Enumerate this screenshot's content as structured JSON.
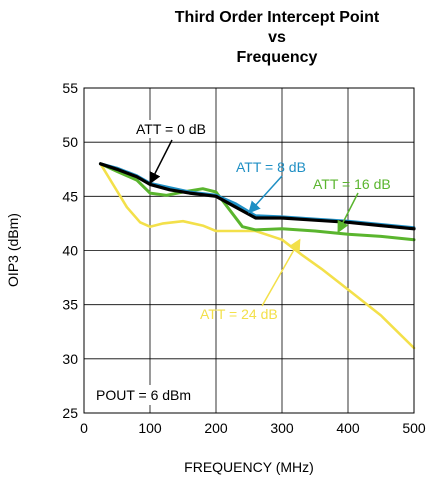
{
  "chart_data": {
    "type": "line",
    "title_lines": [
      "Third Order Intercept Point",
      "vs",
      "Frequency"
    ],
    "xlabel": "FREQUENCY (MHz)",
    "ylabel": "OIP3 (dBm)",
    "xlim": [
      0,
      500
    ],
    "ylim": [
      25,
      55
    ],
    "x_ticks": [
      0,
      100,
      200,
      300,
      400,
      500
    ],
    "y_ticks": [
      25,
      30,
      35,
      40,
      45,
      50,
      55
    ],
    "grid": true,
    "series": [
      {
        "name": "ATT = 0 dB",
        "color": "#000000",
        "x": [
          25,
          50,
          80,
          100,
          130,
          160,
          200,
          230,
          260,
          300,
          350,
          400,
          450,
          500
        ],
        "y": [
          48.0,
          47.5,
          46.8,
          46.1,
          45.6,
          45.3,
          45.0,
          44.0,
          43.0,
          43.0,
          42.8,
          42.6,
          42.3,
          42.0
        ]
      },
      {
        "name": "ATT = 8 dB",
        "color": "#1f8fc4",
        "x": [
          25,
          50,
          80,
          100,
          130,
          160,
          200,
          230,
          260,
          300,
          350,
          400,
          450,
          500
        ],
        "y": [
          48.0,
          47.6,
          46.9,
          46.2,
          45.8,
          45.4,
          45.1,
          44.3,
          43.2,
          43.1,
          42.9,
          42.7,
          42.4,
          42.1
        ]
      },
      {
        "name": "ATT = 16 dB",
        "color": "#5ab52e",
        "x": [
          25,
          50,
          80,
          100,
          125,
          150,
          180,
          200,
          220,
          240,
          260,
          300,
          350,
          400,
          450,
          500
        ],
        "y": [
          48.0,
          47.3,
          46.5,
          45.3,
          45.1,
          45.4,
          45.7,
          45.4,
          43.8,
          42.2,
          41.9,
          42.0,
          41.8,
          41.5,
          41.3,
          41.0
        ]
      },
      {
        "name": "ATT = 24 dB",
        "color": "#f3e04a",
        "x": [
          25,
          45,
          65,
          85,
          100,
          120,
          150,
          180,
          200,
          230,
          260,
          300,
          330,
          360,
          400,
          450,
          500
        ],
        "y": [
          48.0,
          46.0,
          44.0,
          42.6,
          42.2,
          42.5,
          42.7,
          42.3,
          41.8,
          41.8,
          41.8,
          41.0,
          39.6,
          38.3,
          36.4,
          34.0,
          31.0
        ]
      }
    ],
    "annotations": [
      {
        "text": "ATT = 0 dB",
        "color": "#000000",
        "arrow_to": [
          100,
          46.2
        ]
      },
      {
        "text": "ATT = 8 dB",
        "color": "#1f8fc4",
        "arrow_to": [
          250,
          43.5
        ]
      },
      {
        "text": "ATT = 16 dB",
        "color": "#5ab52e",
        "arrow_to": [
          385,
          41.7
        ]
      },
      {
        "text": "ATT = 24 dB",
        "color": "#f3e04a",
        "arrow_to": [
          327,
          41.0
        ]
      },
      {
        "text": "POUT = 6 dBm",
        "color": "#000000"
      }
    ]
  }
}
